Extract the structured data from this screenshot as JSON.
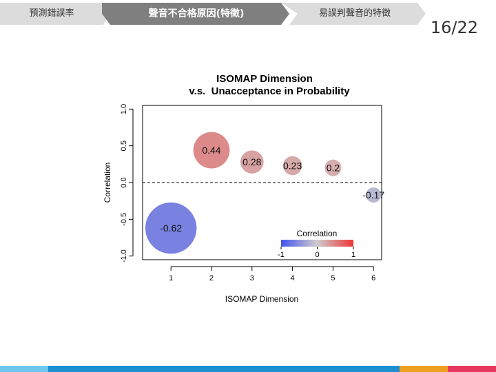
{
  "breadcrumb": {
    "steps": [
      {
        "label": "預測錯誤率",
        "state": "inactive"
      },
      {
        "label": "聲音不合格原因(特徵)",
        "state": "active"
      },
      {
        "label": "易誤判聲音的特徵",
        "state": "inactive"
      }
    ],
    "colors": {
      "active_fill": "#7f7f7f",
      "active_text": "#ffffff",
      "inactive_fill": "#dcdcdc",
      "inactive_text": "#333333"
    }
  },
  "page_number": "16/22",
  "chart_data": {
    "type": "scatter",
    "title": "ISOMAP Dimension",
    "subtitle": "v.s.  Unacceptance in Probability",
    "xlabel": "ISOMAP Dimension",
    "ylabel": "Correlation",
    "x": [
      1,
      2,
      3,
      4,
      5,
      6
    ],
    "values": [
      -0.62,
      0.44,
      0.28,
      0.23,
      0.2,
      -0.17
    ],
    "point_labels": [
      "-0.62",
      "0.44",
      "0.28",
      "0.23",
      "0.2",
      "-0.17"
    ],
    "size_encodes": "absolute correlation",
    "xticks": [
      "1",
      "2",
      "3",
      "4",
      "5",
      "6"
    ],
    "yticks": [
      "-1.0",
      "-0.5",
      "0.0",
      "0.5",
      "1.0"
    ],
    "xlim": [
      0.3,
      6.2
    ],
    "ylim": [
      -1.05,
      1.05
    ],
    "reference_line": {
      "y": 0,
      "style": "dashed"
    },
    "grid": false,
    "legend": {
      "title": "Correlation",
      "placement": "bottom-right",
      "tick_labels": [
        "-1",
        "0",
        "1"
      ],
      "colors": [
        "#4355ee",
        "#d0cccc",
        "#ee3636"
      ]
    }
  },
  "bottom_bar_colors": [
    "#6fc6ee",
    "#1e8fd0",
    "#f0a020",
    "#e83860"
  ]
}
